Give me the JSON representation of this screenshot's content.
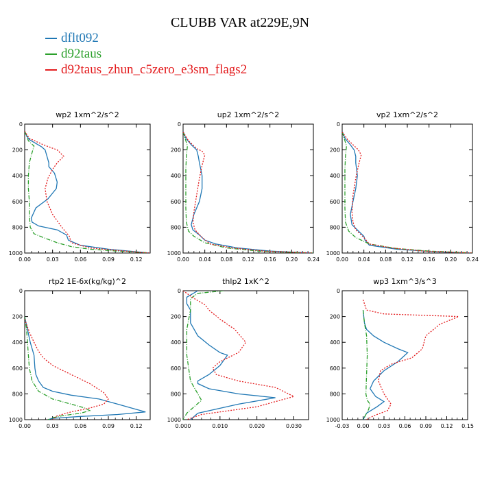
{
  "title": "CLUBB VAR at229E,9N",
  "legend": [
    {
      "label": "dflt092",
      "color": "#1f77b4"
    },
    {
      "label": "d92taus",
      "color": "#2ca02c"
    },
    {
      "label": "d92taus_zhun_c5zero_e3sm_flags2",
      "color": "#e31a1c"
    }
  ],
  "chart_data": [
    {
      "type": "line",
      "title": "wp2  1xm^2/s^2",
      "xlim": [
        0,
        0.135
      ],
      "ylim": [
        1000,
        0
      ],
      "y_inverted": true,
      "xticks": [
        0.0,
        0.03,
        0.06,
        0.09,
        0.12
      ],
      "xtick_labels": [
        "0.00",
        "0.03",
        "0.06",
        "0.09",
        "0.12"
      ],
      "yticks": [
        0,
        200,
        400,
        600,
        800,
        1000
      ],
      "ytick_labels": [
        "0",
        "200",
        "400",
        "600",
        "800",
        "1000"
      ],
      "series": [
        {
          "name": "dflt092",
          "x": [
            0.0,
            0.002,
            0.005,
            0.012,
            0.018,
            0.022,
            0.024,
            0.026,
            0.026,
            0.032,
            0.035,
            0.034,
            0.025,
            0.012,
            0.007,
            0.008,
            0.015,
            0.035,
            0.045,
            0.047,
            0.06,
            0.09,
            0.12,
            0.135
          ],
          "y": [
            55,
            90,
            120,
            150,
            175,
            200,
            250,
            300,
            330,
            380,
            450,
            500,
            580,
            650,
            730,
            760,
            790,
            820,
            860,
            900,
            940,
            970,
            990,
            1000
          ]
        },
        {
          "name": "d92taus",
          "x": [
            0.0,
            0.002,
            0.004,
            0.01,
            0.008,
            0.005,
            0.004,
            0.004,
            0.005,
            0.005,
            0.006,
            0.01,
            0.02,
            0.035,
            0.05,
            0.07,
            0.1,
            0.125,
            0.135
          ],
          "y": [
            55,
            90,
            130,
            170,
            220,
            300,
            400,
            500,
            600,
            700,
            800,
            850,
            880,
            920,
            950,
            970,
            985,
            995,
            1000
          ]
        },
        {
          "name": "d92taus_zhun_c5zero_e3sm_flags2",
          "x": [
            0.0,
            0.005,
            0.02,
            0.035,
            0.042,
            0.035,
            0.03,
            0.025,
            0.022,
            0.024,
            0.03,
            0.04,
            0.048,
            0.05,
            0.07,
            0.1,
            0.125,
            0.135
          ],
          "y": [
            55,
            110,
            160,
            200,
            250,
            300,
            350,
            420,
            500,
            600,
            700,
            800,
            870,
            920,
            960,
            980,
            995,
            1000
          ]
        }
      ]
    },
    {
      "type": "line",
      "title": "up2  1xm^2/s^2",
      "xlim": [
        0,
        0.24
      ],
      "ylim": [
        1000,
        0
      ],
      "y_inverted": true,
      "xticks": [
        0.0,
        0.04,
        0.08,
        0.12,
        0.16,
        0.2,
        0.24
      ],
      "xtick_labels": [
        "0.00",
        "0.04",
        "0.08",
        "0.12",
        "0.16",
        "0.20",
        "0.24"
      ],
      "yticks": [
        0,
        200,
        400,
        600,
        800,
        1000
      ],
      "ytick_labels": [
        "0",
        "200",
        "400",
        "600",
        "800",
        "1000"
      ],
      "series": [
        {
          "name": "dflt092",
          "x": [
            0.0,
            0.005,
            0.015,
            0.025,
            0.028,
            0.03,
            0.035,
            0.035,
            0.03,
            0.02,
            0.015,
            0.018,
            0.03,
            0.04,
            0.06,
            0.1,
            0.16,
            0.24
          ],
          "y": [
            55,
            110,
            160,
            200,
            250,
            300,
            400,
            500,
            600,
            700,
            780,
            820,
            860,
            900,
            930,
            960,
            985,
            1000
          ]
        },
        {
          "name": "d92taus",
          "x": [
            0.0,
            0.003,
            0.008,
            0.006,
            0.005,
            0.005,
            0.005,
            0.006,
            0.01,
            0.02,
            0.04,
            0.08,
            0.14,
            0.2,
            0.24
          ],
          "y": [
            60,
            100,
            170,
            250,
            350,
            500,
            650,
            760,
            830,
            870,
            920,
            960,
            985,
            995,
            1000
          ]
        },
        {
          "name": "d92taus_zhun_c5zero_e3sm_flags2",
          "x": [
            0.0,
            0.01,
            0.025,
            0.035,
            0.04,
            0.035,
            0.03,
            0.025,
            0.02,
            0.018,
            0.022,
            0.035,
            0.05,
            0.09,
            0.15,
            0.21,
            0.24
          ],
          "y": [
            60,
            130,
            190,
            210,
            240,
            320,
            420,
            550,
            680,
            760,
            820,
            880,
            930,
            960,
            985,
            995,
            1000
          ]
        }
      ]
    },
    {
      "type": "line",
      "title": "vp2  1xm^2/s^2",
      "xlim": [
        0,
        0.24
      ],
      "ylim": [
        1000,
        0
      ],
      "y_inverted": true,
      "xticks": [
        0.0,
        0.04,
        0.08,
        0.12,
        0.16,
        0.2,
        0.24
      ],
      "xtick_labels": [
        "0.00",
        "0.04",
        "0.08",
        "0.12",
        "0.16",
        "0.20",
        "0.24"
      ],
      "yticks": [
        0,
        200,
        400,
        600,
        800,
        1000
      ],
      "ytick_labels": [
        "0",
        "200",
        "400",
        "600",
        "800",
        "1000"
      ],
      "series": [
        {
          "name": "dflt092",
          "x": [
            0.0,
            0.005,
            0.015,
            0.022,
            0.025,
            0.025,
            0.028,
            0.025,
            0.02,
            0.015,
            0.018,
            0.03,
            0.04,
            0.042,
            0.05,
            0.1,
            0.17,
            0.24
          ],
          "y": [
            55,
            110,
            160,
            200,
            250,
            300,
            400,
            500,
            600,
            700,
            780,
            830,
            870,
            900,
            940,
            970,
            990,
            1000
          ]
        },
        {
          "name": "d92taus",
          "x": [
            0.0,
            0.003,
            0.008,
            0.006,
            0.005,
            0.005,
            0.005,
            0.006,
            0.012,
            0.025,
            0.05,
            0.1,
            0.16,
            0.22,
            0.24
          ],
          "y": [
            60,
            100,
            170,
            250,
            350,
            500,
            650,
            760,
            830,
            880,
            930,
            965,
            985,
            995,
            1000
          ]
        },
        {
          "name": "d92taus_zhun_c5zero_e3sm_flags2",
          "x": [
            0.0,
            0.01,
            0.02,
            0.03,
            0.035,
            0.03,
            0.025,
            0.02,
            0.018,
            0.02,
            0.025,
            0.04,
            0.05,
            0.09,
            0.15,
            0.21,
            0.24
          ],
          "y": [
            60,
            120,
            160,
            200,
            240,
            320,
            420,
            550,
            680,
            760,
            820,
            880,
            930,
            960,
            985,
            995,
            1000
          ]
        }
      ]
    },
    {
      "type": "line",
      "title": "rtp2  1E-6x(kg/kg)^2",
      "xlim": [
        0,
        0.135
      ],
      "ylim": [
        1000,
        0
      ],
      "y_inverted": true,
      "xticks": [
        0.0,
        0.03,
        0.06,
        0.09,
        0.12
      ],
      "xtick_labels": [
        "0.00",
        "0.03",
        "0.06",
        "0.09",
        "0.12"
      ],
      "yticks": [
        0,
        200,
        400,
        600,
        800,
        1000
      ],
      "ytick_labels": [
        "0",
        "200",
        "400",
        "600",
        "800",
        "1000"
      ],
      "series": [
        {
          "name": "dflt092",
          "x": [
            0.0,
            0.003,
            0.006,
            0.01,
            0.011,
            0.012,
            0.015,
            0.02,
            0.03,
            0.05,
            0.08,
            0.1,
            0.12,
            0.13,
            0.1,
            0.06,
            0.03,
            0.025
          ],
          "y": [
            200,
            300,
            400,
            500,
            600,
            650,
            700,
            750,
            780,
            810,
            840,
            880,
            920,
            940,
            960,
            975,
            990,
            1000
          ]
        },
        {
          "name": "d92taus",
          "x": [
            0.0,
            0.002,
            0.003,
            0.004,
            0.005,
            0.008,
            0.015,
            0.03,
            0.05,
            0.065,
            0.07,
            0.06,
            0.04,
            0.03,
            0.025
          ],
          "y": [
            200,
            300,
            400,
            500,
            600,
            700,
            780,
            840,
            880,
            910,
            930,
            950,
            970,
            985,
            1000
          ]
        },
        {
          "name": "d92taus_zhun_c5zero_e3sm_flags2",
          "x": [
            0.0,
            0.005,
            0.01,
            0.015,
            0.02,
            0.03,
            0.05,
            0.07,
            0.085,
            0.09,
            0.085,
            0.07,
            0.05,
            0.035,
            0.03
          ],
          "y": [
            220,
            320,
            400,
            470,
            520,
            580,
            650,
            720,
            790,
            840,
            880,
            910,
            940,
            970,
            1000
          ]
        }
      ]
    },
    {
      "type": "line",
      "title": "thlp2  1xK^2",
      "xlim": [
        0,
        0.034
      ],
      "ylim": [
        1000,
        0
      ],
      "y_inverted": true,
      "xticks": [
        0.0,
        0.01,
        0.02,
        0.03
      ],
      "xtick_labels": [
        "0.000",
        "0.010",
        "0.020",
        "0.030"
      ],
      "yticks": [
        0,
        200,
        400,
        600,
        800,
        1000
      ],
      "ytick_labels": [
        "0",
        "200",
        "400",
        "600",
        "800",
        "1000"
      ],
      "series": [
        {
          "name": "dflt092",
          "x": [
            0.004,
            0.001,
            0.001,
            0.002,
            0.002,
            0.004,
            0.007,
            0.01,
            0.012,
            0.01,
            0.007,
            0.004,
            0.004,
            0.007,
            0.015,
            0.025,
            0.015,
            0.004,
            0.002
          ],
          "y": [
            0,
            50,
            100,
            150,
            250,
            350,
            420,
            480,
            500,
            580,
            650,
            700,
            720,
            760,
            800,
            830,
            880,
            950,
            1000
          ]
        },
        {
          "name": "d92taus",
          "x": [
            0.011,
            0.004,
            0.002,
            0.002,
            0.001,
            0.001,
            0.002,
            0.004,
            0.005,
            0.003,
            0.001,
            0.0
          ],
          "y": [
            0,
            20,
            60,
            150,
            300,
            500,
            700,
            800,
            850,
            900,
            950,
            1000
          ]
        },
        {
          "name": "d92taus_zhun_c5zero_e3sm_flags2",
          "x": [
            0.0,
            0.003,
            0.006,
            0.007,
            0.01,
            0.014,
            0.017,
            0.015,
            0.01,
            0.008,
            0.009,
            0.015,
            0.025,
            0.03,
            0.02,
            0.005,
            0.001
          ],
          "y": [
            0,
            60,
            110,
            150,
            220,
            300,
            400,
            480,
            550,
            600,
            650,
            700,
            750,
            820,
            900,
            960,
            1000
          ]
        }
      ]
    },
    {
      "type": "line",
      "title": "wp3  1xm^3/s^3",
      "xlim": [
        -0.03,
        0.15
      ],
      "ylim": [
        1000,
        0
      ],
      "y_inverted": true,
      "xticks": [
        -0.03,
        0.0,
        0.03,
        0.06,
        0.09,
        0.12,
        0.15
      ],
      "xtick_labels": [
        "-0.03",
        "0.00",
        "0.03",
        "0.06",
        "0.09",
        "0.12",
        "0.15"
      ],
      "yticks": [
        0,
        200,
        400,
        600,
        800,
        1000
      ],
      "ytick_labels": [
        "0",
        "200",
        "400",
        "600",
        "800",
        "1000"
      ],
      "series": [
        {
          "name": "dflt092",
          "x": [
            0.0,
            0.002,
            0.005,
            0.015,
            0.03,
            0.05,
            0.064,
            0.05,
            0.03,
            0.015,
            0.01,
            0.018,
            0.03,
            0.02,
            0.005,
            0.0
          ],
          "y": [
            150,
            250,
            300,
            350,
            400,
            450,
            480,
            550,
            620,
            700,
            760,
            820,
            860,
            900,
            950,
            1000
          ]
        },
        {
          "name": "d92taus",
          "x": [
            0.0,
            0.002,
            0.005,
            0.006,
            0.005,
            0.004,
            0.006,
            0.01,
            0.008,
            0.004,
            0.0
          ],
          "y": [
            150,
            250,
            350,
            500,
            650,
            800,
            850,
            880,
            920,
            960,
            1000
          ]
        },
        {
          "name": "d92taus_zhun_c5zero_e3sm_flags2",
          "x": [
            0.0,
            0.005,
            0.03,
            0.137,
            0.11,
            0.09,
            0.085,
            0.07,
            0.04,
            0.025,
            0.022,
            0.03,
            0.04,
            0.035,
            0.015,
            0.005
          ],
          "y": [
            70,
            150,
            180,
            200,
            260,
            350,
            450,
            520,
            570,
            620,
            700,
            800,
            880,
            930,
            970,
            1000
          ]
        }
      ]
    }
  ]
}
